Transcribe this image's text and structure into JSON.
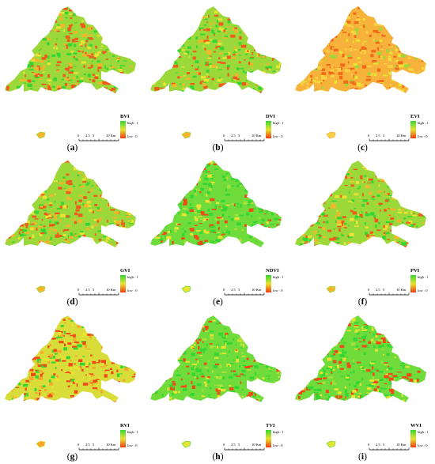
{
  "legend": {
    "high": "high : 1",
    "low": "low : 0"
  },
  "scale": {
    "ticks": [
      "0",
      "2.5",
      "5",
      "10 Km"
    ]
  },
  "colors": {
    "high": "#35d633",
    "mid": "#e8e431",
    "low": "#f23a12"
  },
  "panels": [
    {
      "index": "a",
      "title": "BVI",
      "tone": "mixed"
    },
    {
      "index": "b",
      "title": "DVI",
      "tone": "mixed"
    },
    {
      "index": "c",
      "title": "EVI",
      "tone": "orange"
    },
    {
      "index": "d",
      "title": "GVI",
      "tone": "mixed"
    },
    {
      "index": "e",
      "title": "NDVI",
      "tone": "green"
    },
    {
      "index": "f",
      "title": "PVI",
      "tone": "mixed"
    },
    {
      "index": "g",
      "title": "RVI",
      "tone": "warm"
    },
    {
      "index": "h",
      "title": "TVI",
      "tone": "green"
    },
    {
      "index": "i",
      "title": "WVI",
      "tone": "green"
    }
  ]
}
